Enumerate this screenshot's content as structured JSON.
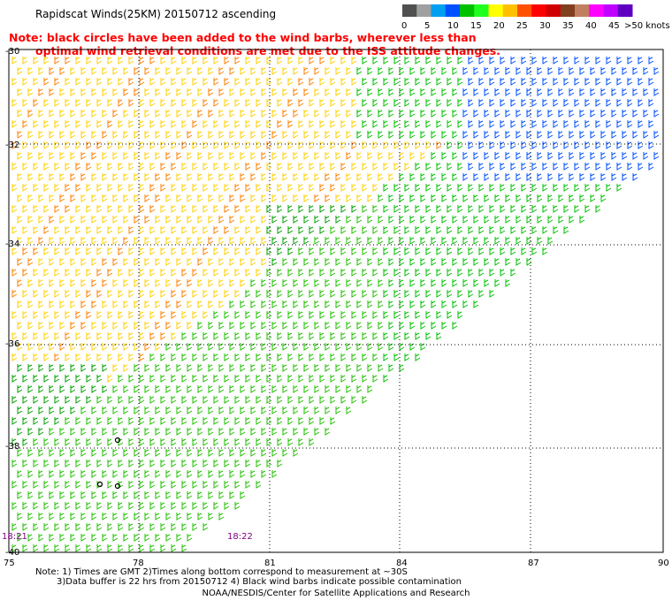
{
  "title": "Rapidscat Winds(25KM) 20150712 ascending",
  "note": {
    "line1": "Note: black circles have been added to the wind barbs, wherever less than",
    "line2": "optimal wind retrieval conditions are met due to the ISS attitude changes."
  },
  "legend": {
    "unit": ">50 knots",
    "ticks": [
      "0",
      "5",
      "10",
      "15",
      "20",
      "25",
      "30",
      "35",
      "40",
      "45"
    ],
    "colors": [
      "#505050",
      "#a0a0a0",
      "#00a0f0",
      "#0050ff",
      "#00c000",
      "#20ff20",
      "#ffff00",
      "#ffc000",
      "#ff5000",
      "#ff0000",
      "#d00000",
      "#804020",
      "#c08060",
      "#ff00ff",
      "#c000ff",
      "#6000c0"
    ]
  },
  "axes": {
    "lat_labels": [
      "-30",
      "-32",
      "-34",
      "-36",
      "-38",
      "-40"
    ],
    "lon_labels": [
      "75",
      "78",
      "81",
      "84",
      "87",
      "90"
    ]
  },
  "time_labels": [
    "18:21",
    "18:22"
  ],
  "footnotes": {
    "line1": "Note: 1) Times are GMT 2)Times along bottom correspond to measurement at ~30S",
    "line2": "3)Data buffer is 22 hrs from 20150712 4) Black wind barbs indicate possible contamination"
  },
  "credit": "NOAA/NESDIS/Center for Satellite Applications and Research"
}
